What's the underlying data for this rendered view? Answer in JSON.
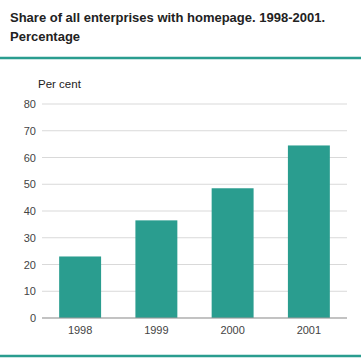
{
  "chart_data": {
    "type": "bar",
    "title": "Share of all enterprises with homepage. 1998-2001.",
    "subtitle": "Percentage",
    "y_label": "Per cent",
    "categories": [
      "1998",
      "1999",
      "2000",
      "2001"
    ],
    "values": [
      23,
      36.5,
      48.5,
      64.5
    ],
    "color": "#2a9d8f",
    "ylim": [
      0,
      80
    ],
    "yticks": [
      0,
      10,
      20,
      30,
      40,
      50,
      60,
      70,
      80
    ],
    "grid": true
  }
}
